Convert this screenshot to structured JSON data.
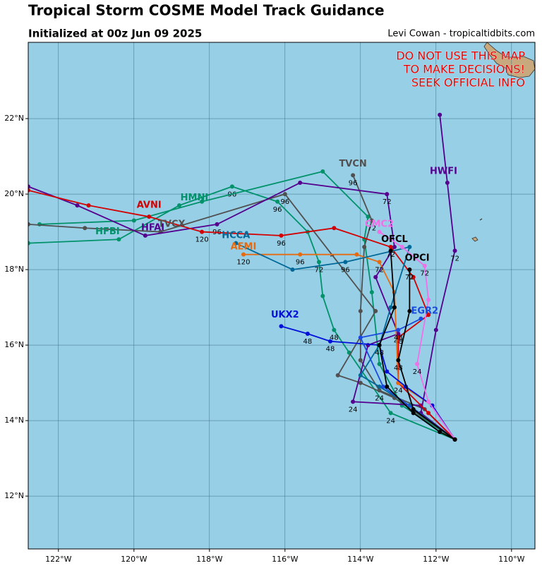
{
  "header": {
    "title": "Tropical Storm COSME Model Track Guidance",
    "subtitle": "Initialized at 00z Jun 09 2025",
    "credit": "Levi Cowan - tropicaltidbits.com"
  },
  "warning": [
    "DO NOT USE THIS MAP",
    "TO MAKE DECISIONS!",
    "SEEK OFFICIAL INFO"
  ],
  "map": {
    "lon_range": [
      -122.8,
      -109.38
    ],
    "lat_range": [
      10.6,
      24.02
    ],
    "lon_ticks": [
      {
        "value": -122,
        "label": "122°W"
      },
      {
        "value": -120,
        "label": "120°W"
      },
      {
        "value": -118,
        "label": "118°W"
      },
      {
        "value": -116,
        "label": "116°W"
      },
      {
        "value": -114,
        "label": "114°W"
      },
      {
        "value": -112,
        "label": "112°W"
      },
      {
        "value": -110,
        "label": "110°W"
      }
    ],
    "lat_ticks": [
      {
        "value": 12,
        "label": "12°N"
      },
      {
        "value": 14,
        "label": "14°N"
      },
      {
        "value": 16,
        "label": "16°N"
      },
      {
        "value": 18,
        "label": "18°N"
      },
      {
        "value": 20,
        "label": "20°N"
      },
      {
        "value": 22,
        "label": "22°N"
      }
    ],
    "tracks": [
      {
        "name": "HMNI",
        "color": "#00926a",
        "name_at": [
          -118.4,
          19.9
        ],
        "points": [
          {
            "lon": -111.5,
            "lat": 13.5
          },
          {
            "lon": -113.2,
            "lat": 14.2,
            "hour": "24"
          },
          {
            "lon": -114.3,
            "lat": 15.8
          },
          {
            "lon": -114.7,
            "lat": 16.4,
            "hour": "48"
          },
          {
            "lon": -115.0,
            "lat": 17.3
          },
          {
            "lon": -115.1,
            "lat": 18.2,
            "hour": "72"
          },
          {
            "lon": -115.4,
            "lat": 19.0
          },
          {
            "lon": -116.2,
            "lat": 19.8,
            "hour": "96"
          },
          {
            "lon": -117.4,
            "lat": 20.2,
            "hour": "96"
          },
          {
            "lon": -118.8,
            "lat": 19.7
          },
          {
            "lon": -120.4,
            "lat": 18.8
          },
          {
            "lon": -122.8,
            "lat": 18.7
          }
        ]
      },
      {
        "name": "HFBI",
        "color": "#00926a",
        "name_at": [
          -120.7,
          19.0
        ],
        "points": [
          {
            "lon": -111.5,
            "lat": 13.5
          },
          {
            "lon": -112.9,
            "lat": 14.4
          },
          {
            "lon": -113.5,
            "lat": 15.5
          },
          {
            "lon": -113.7,
            "lat": 17.4
          },
          {
            "lon": -113.9,
            "lat": 18.8
          },
          {
            "lon": -113.8,
            "lat": 19.4
          },
          {
            "lon": -115.0,
            "lat": 20.6
          },
          {
            "lon": -118.2,
            "lat": 19.8
          },
          {
            "lon": -120.0,
            "lat": 19.3
          },
          {
            "lon": -122.5,
            "lat": 19.2
          }
        ]
      },
      {
        "name": "TVCX",
        "color": "#505050",
        "name_at": [
          -119.0,
          19.2
        ],
        "points": [
          {
            "lon": -111.5,
            "lat": 13.5
          },
          {
            "lon": -113.1,
            "lat": 14.6
          },
          {
            "lon": -114.0,
            "lat": 15.0
          },
          {
            "lon": -114.6,
            "lat": 15.2
          },
          {
            "lon": -113.6,
            "lat": 16.9
          },
          {
            "lon": -116.0,
            "lat": 20.0,
            "hour": "96"
          },
          {
            "lon": -119.3,
            "lat": 19.0
          },
          {
            "lon": -121.3,
            "lat": 19.1
          },
          {
            "lon": -122.8,
            "lat": 19.2
          }
        ]
      },
      {
        "name": "TVCN",
        "color": "#505050",
        "name_at": [
          -114.2,
          20.8
        ],
        "points": [
          {
            "lon": -111.5,
            "lat": 13.5
          },
          {
            "lon": -112.3,
            "lat": 14.3
          },
          {
            "lon": -113.5,
            "lat": 14.8,
            "hour": "24"
          },
          {
            "lon": -114.0,
            "lat": 15.6
          },
          {
            "lon": -114.0,
            "lat": 16.9
          },
          {
            "lon": -113.9,
            "lat": 18.6
          },
          {
            "lon": -113.7,
            "lat": 19.3,
            "hour": "72"
          },
          {
            "lon": -114.2,
            "lat": 20.5,
            "hour": "96"
          }
        ]
      },
      {
        "name": "HFAI",
        "color": "#55008f",
        "name_at": [
          -119.5,
          19.1
        ],
        "points": [
          {
            "lon": -111.5,
            "lat": 13.5
          },
          {
            "lon": -112.4,
            "lat": 14.4
          },
          {
            "lon": -114.2,
            "lat": 14.5,
            "hour": "24"
          },
          {
            "lon": -113.8,
            "lat": 16.0
          },
          {
            "lon": -113.0,
            "lat": 16.3,
            "hour": "48"
          },
          {
            "lon": -113.6,
            "lat": 17.8
          },
          {
            "lon": -113.1,
            "lat": 18.6
          },
          {
            "lon": -113.3,
            "lat": 20.0,
            "hour": "72"
          },
          {
            "lon": -115.6,
            "lat": 20.3
          },
          {
            "lon": -117.8,
            "lat": 19.2,
            "hour": "96"
          },
          {
            "lon": -119.7,
            "lat": 18.9
          },
          {
            "lon": -121.5,
            "lat": 19.7
          },
          {
            "lon": -122.8,
            "lat": 20.2
          }
        ]
      },
      {
        "name": "HWFI",
        "color": "#55008f",
        "name_at": [
          -111.8,
          20.6
        ],
        "points": [
          {
            "lon": -111.5,
            "lat": 13.5
          },
          {
            "lon": -112.4,
            "lat": 14.2
          },
          {
            "lon": -112.0,
            "lat": 16.4
          },
          {
            "lon": -111.5,
            "lat": 18.5,
            "hour": "72"
          },
          {
            "lon": -111.7,
            "lat": 20.3
          },
          {
            "lon": -111.9,
            "lat": 22.1
          }
        ]
      },
      {
        "name": "AVNI",
        "color": "#d40000",
        "name_at": [
          -119.6,
          19.7
        ],
        "points": [
          {
            "lon": -111.5,
            "lat": 13.5
          },
          {
            "lon": -112.2,
            "lat": 14.2
          },
          {
            "lon": -113.0,
            "lat": 15.0,
            "hour": "24"
          },
          {
            "lon": -113.0,
            "lat": 16.2
          },
          {
            "lon": -112.2,
            "lat": 16.8
          },
          {
            "lon": -112.6,
            "lat": 17.8
          },
          {
            "lon": -113.2,
            "lat": 18.6,
            "hour": "72"
          },
          {
            "lon": -114.7,
            "lat": 19.1
          },
          {
            "lon": -116.1,
            "lat": 18.9,
            "hour": "96"
          },
          {
            "lon": -118.2,
            "lat": 19.0,
            "hour": "120"
          },
          {
            "lon": -119.6,
            "lat": 19.4
          },
          {
            "lon": -121.2,
            "lat": 19.7
          },
          {
            "lon": -122.8,
            "lat": 20.1
          }
        ]
      },
      {
        "name": "AEMI",
        "color": "#e86a10",
        "name_at": [
          -117.1,
          18.6
        ],
        "points": [
          {
            "lon": -111.5,
            "lat": 13.5
          },
          {
            "lon": -112.1,
            "lat": 14.4
          },
          {
            "lon": -113.0,
            "lat": 15.0
          },
          {
            "lon": -113.1,
            "lat": 17.4
          },
          {
            "lon": -113.5,
            "lat": 18.2,
            "hour": "72"
          },
          {
            "lon": -114.1,
            "lat": 18.4
          },
          {
            "lon": -115.6,
            "lat": 18.4,
            "hour": "96"
          },
          {
            "lon": -117.1,
            "lat": 18.4,
            "hour": "120"
          }
        ]
      },
      {
        "name": "HCCA",
        "color": "#006898",
        "name_at": [
          -117.3,
          18.9
        ],
        "points": [
          {
            "lon": -111.5,
            "lat": 13.5
          },
          {
            "lon": -112.7,
            "lat": 14.4
          },
          {
            "lon": -113.5,
            "lat": 14.9
          },
          {
            "lon": -114.0,
            "lat": 15.2
          },
          {
            "lon": -113.5,
            "lat": 16.0
          },
          {
            "lon": -113.2,
            "lat": 17.0
          },
          {
            "lon": -112.7,
            "lat": 18.6
          },
          {
            "lon": -114.4,
            "lat": 18.2,
            "hour": "96"
          },
          {
            "lon": -115.8,
            "lat": 18.0
          },
          {
            "lon": -117.3,
            "lat": 18.7
          }
        ]
      },
      {
        "name": "UKX2",
        "color": "#0010d8",
        "name_at": [
          -116.0,
          16.8
        ],
        "points": [
          {
            "lon": -111.5,
            "lat": 13.5
          },
          {
            "lon": -112.1,
            "lat": 14.4
          },
          {
            "lon": -112.8,
            "lat": 14.9
          },
          {
            "lon": -113.3,
            "lat": 15.3
          },
          {
            "lon": -113.5,
            "lat": 16.0
          },
          {
            "lon": -114.8,
            "lat": 16.1,
            "hour": "48"
          },
          {
            "lon": -115.4,
            "lat": 16.3,
            "hour": "48"
          },
          {
            "lon": -116.1,
            "lat": 16.5
          }
        ]
      },
      {
        "name": "EGR2",
        "color": "#1a4be0",
        "name_at": [
          -112.3,
          16.9
        ],
        "points": [
          {
            "lon": -111.5,
            "lat": 13.5
          },
          {
            "lon": -113.4,
            "lat": 14.9
          },
          {
            "lon": -114.0,
            "lat": 16.2
          },
          {
            "lon": -113.0,
            "lat": 16.4,
            "hour": "48"
          },
          {
            "lon": -112.4,
            "lat": 16.7
          }
        ]
      },
      {
        "name": "CMC2",
        "color": "#f070e8",
        "name_at": [
          -113.5,
          19.2
        ],
        "points": [
          {
            "lon": -111.5,
            "lat": 13.5
          },
          {
            "lon": -112.2,
            "lat": 14.5
          },
          {
            "lon": -112.5,
            "lat": 15.5,
            "hour": "24"
          },
          {
            "lon": -112.2,
            "lat": 17.2
          },
          {
            "lon": -112.3,
            "lat": 18.1,
            "hour": "72"
          },
          {
            "lon": -112.9,
            "lat": 18.6
          },
          {
            "lon": -113.5,
            "lat": 19.0
          }
        ]
      },
      {
        "name": "OPCI",
        "color": "#000000",
        "name_at": [
          -112.5,
          18.3
        ],
        "points": [
          {
            "lon": -111.5,
            "lat": 13.5
          },
          {
            "lon": -112.6,
            "lat": 14.3
          },
          {
            "lon": -113.0,
            "lat": 15.6,
            "hour": "48"
          },
          {
            "lon": -112.7,
            "lat": 16.9
          },
          {
            "lon": -112.7,
            "lat": 18.0,
            "hour": "72"
          }
        ]
      },
      {
        "name": "OFCL",
        "color": "#000000",
        "name_at": [
          -113.1,
          18.8
        ],
        "points": [
          {
            "lon": -111.5,
            "lat": 13.5
          },
          {
            "lon": -111.9,
            "lat": 13.7
          },
          {
            "lon": -112.6,
            "lat": 14.2
          },
          {
            "lon": -113.3,
            "lat": 14.9
          },
          {
            "lon": -113.5,
            "lat": 16.0,
            "hour": "48"
          },
          {
            "lon": -113.1,
            "lat": 17.0
          },
          {
            "lon": -113.2,
            "lat": 18.5
          }
        ]
      }
    ]
  }
}
